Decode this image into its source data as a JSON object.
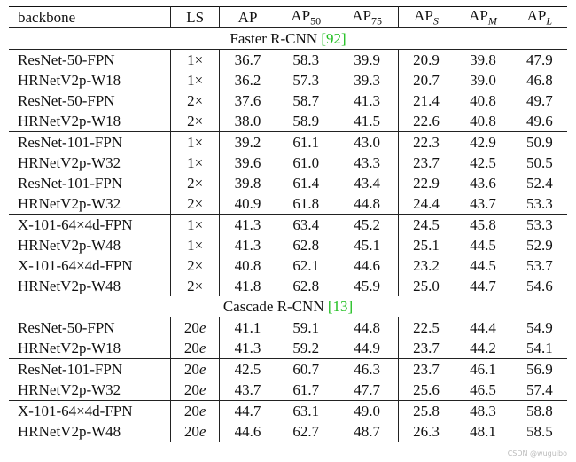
{
  "table": {
    "header": [
      "backbone",
      "LS",
      "AP",
      {
        "text": "AP",
        "sub": "50"
      },
      {
        "text": "AP",
        "sub": "75"
      },
      {
        "text": "AP",
        "sub": "S"
      },
      {
        "text": "AP",
        "sub": "M"
      },
      {
        "text": "AP",
        "sub": "L"
      }
    ],
    "sections": [
      {
        "title": "Faster R-CNN",
        "ref": "[92]",
        "groups": [
          [
            [
              "ResNet-50-FPN",
              "1×",
              "36.7",
              "58.3",
              "39.9",
              "20.9",
              "39.8",
              "47.9"
            ],
            [
              "HRNetV2p-W18",
              "1×",
              "36.2",
              "57.3",
              "39.3",
              "20.7",
              "39.0",
              "46.8"
            ],
            [
              "ResNet-50-FPN",
              "2×",
              "37.6",
              "58.7",
              "41.3",
              "21.4",
              "40.8",
              "49.7"
            ],
            [
              "HRNetV2p-W18",
              "2×",
              "38.0",
              "58.9",
              "41.5",
              "22.6",
              "40.8",
              "49.6"
            ]
          ],
          [
            [
              "ResNet-101-FPN",
              "1×",
              "39.2",
              "61.1",
              "43.0",
              "22.3",
              "42.9",
              "50.9"
            ],
            [
              "HRNetV2p-W32",
              "1×",
              "39.6",
              "61.0",
              "43.3",
              "23.7",
              "42.5",
              "50.5"
            ],
            [
              "ResNet-101-FPN",
              "2×",
              "39.8",
              "61.4",
              "43.4",
              "22.9",
              "43.6",
              "52.4"
            ],
            [
              "HRNetV2p-W32",
              "2×",
              "40.9",
              "61.8",
              "44.8",
              "24.4",
              "43.7",
              "53.3"
            ]
          ],
          [
            [
              "X-101-64×4d-FPN",
              "1×",
              "41.3",
              "63.4",
              "45.2",
              "24.5",
              "45.8",
              "53.3"
            ],
            [
              "HRNetV2p-W48",
              "1×",
              "41.3",
              "62.8",
              "45.1",
              "25.1",
              "44.5",
              "52.9"
            ],
            [
              "X-101-64×4d-FPN",
              "2×",
              "40.8",
              "62.1",
              "44.6",
              "23.2",
              "44.5",
              "53.7"
            ],
            [
              "HRNetV2p-W48",
              "2×",
              "41.8",
              "62.8",
              "45.9",
              "25.0",
              "44.7",
              "54.6"
            ]
          ]
        ]
      },
      {
        "title": "Cascade R-CNN",
        "ref": "[13]",
        "groups": [
          [
            [
              "ResNet-50-FPN",
              "20e",
              "41.1",
              "59.1",
              "44.8",
              "22.5",
              "44.4",
              "54.9"
            ],
            [
              "HRNetV2p-W18",
              "20e",
              "41.3",
              "59.2",
              "44.9",
              "23.7",
              "44.2",
              "54.1"
            ]
          ],
          [
            [
              "ResNet-101-FPN",
              "20e",
              "42.5",
              "60.7",
              "46.3",
              "23.7",
              "46.1",
              "56.9"
            ],
            [
              "HRNetV2p-W32",
              "20e",
              "43.7",
              "61.7",
              "47.7",
              "25.6",
              "46.5",
              "57.4"
            ]
          ],
          [
            [
              "X-101-64×4d-FPN",
              "20e",
              "44.7",
              "63.1",
              "49.0",
              "25.8",
              "48.3",
              "58.8"
            ],
            [
              "HRNetV2p-W48",
              "20e",
              "44.6",
              "62.7",
              "48.7",
              "26.3",
              "48.1",
              "58.5"
            ]
          ]
        ]
      }
    ]
  },
  "watermark": "CSDN @wuguibo"
}
